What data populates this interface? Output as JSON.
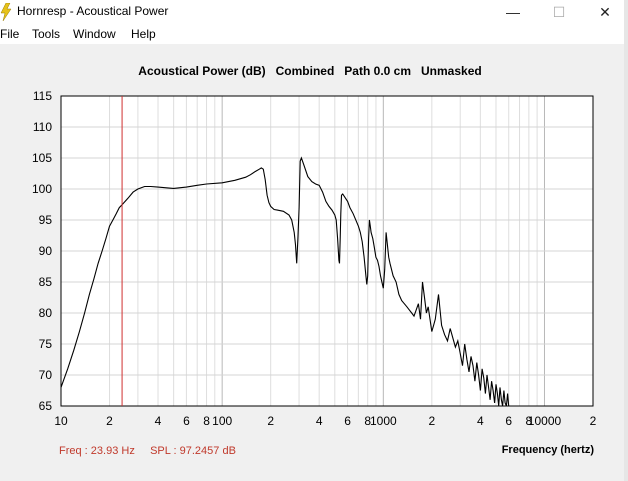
{
  "window": {
    "title": "Hornresp - Acoustical Power",
    "minimize_glyph": "—",
    "maximize_glyph": "☐",
    "close_glyph": "✕",
    "icon": "lightning-icon"
  },
  "menu": [
    {
      "label": "File"
    },
    {
      "label": "Tools"
    },
    {
      "label": "Window"
    },
    {
      "label": "Help"
    }
  ],
  "header": {
    "title": "Acoustical Power (dB)   Combined   Path 0.0 cm   Unmasked"
  },
  "status": {
    "readout": "Freq : 23.93 Hz     SPL : 97.2457 dB",
    "x_axis_label": "Frequency (hertz)"
  },
  "colors": {
    "curve": "#000000",
    "cursor": "#d03030",
    "status_text": "#c0392b",
    "grid": "#c8c8c8"
  },
  "chart_data": {
    "type": "line",
    "title": "Acoustical Power (dB)   Combined   Path 0.0 cm   Unmasked",
    "xlabel": "Frequency (hertz)",
    "ylabel": "",
    "xscale": "log",
    "xlim": [
      10,
      20000
    ],
    "ylim": [
      65,
      115
    ],
    "grid": true,
    "y_ticks": [
      "115",
      "110",
      "105",
      "100",
      "95",
      "90",
      "85",
      "80",
      "75",
      "70",
      "65"
    ],
    "x_ticks": [
      {
        "value": 10,
        "label": "10"
      },
      {
        "value": 20,
        "label": "2"
      },
      {
        "value": 40,
        "label": "4"
      },
      {
        "value": 60,
        "label": "6"
      },
      {
        "value": 80,
        "label": "8"
      },
      {
        "value": 100,
        "label": "100"
      },
      {
        "value": 200,
        "label": "2"
      },
      {
        "value": 400,
        "label": "4"
      },
      {
        "value": 600,
        "label": "6"
      },
      {
        "value": 800,
        "label": "8"
      },
      {
        "value": 1000,
        "label": "1000"
      },
      {
        "value": 2000,
        "label": "2"
      },
      {
        "value": 4000,
        "label": "4"
      },
      {
        "value": 6000,
        "label": "6"
      },
      {
        "value": 8000,
        "label": "8"
      },
      {
        "value": 10000,
        "label": "10000"
      },
      {
        "value": 20000,
        "label": "2"
      }
    ],
    "cursor": {
      "freq": 23.93,
      "spl": 97.2457
    },
    "series": [
      {
        "x": [
          10,
          11,
          12,
          13,
          14,
          15,
          16,
          17,
          18,
          19,
          20,
          21,
          22,
          23,
          24,
          25,
          26,
          28,
          30,
          33,
          36,
          40,
          45,
          50,
          60,
          70,
          80,
          100,
          120,
          140,
          150,
          160,
          170,
          175,
          180,
          185,
          190,
          195,
          200,
          210,
          220,
          240,
          260,
          270,
          280,
          285,
          290,
          295,
          300,
          305,
          310,
          320,
          340,
          360,
          380,
          400,
          420,
          440,
          460,
          480,
          500,
          510,
          520,
          530,
          535,
          540,
          545,
          550,
          560,
          600,
          620,
          650,
          700,
          720,
          740,
          760,
          780,
          790,
          800,
          810,
          820,
          830,
          840,
          860,
          880,
          900,
          920,
          940,
          960,
          980,
          1000,
          1020,
          1040,
          1060,
          1080,
          1100,
          1150,
          1200,
          1250,
          1300,
          1350,
          1400,
          1450,
          1500,
          1550,
          1600,
          1650,
          1700,
          1750,
          1800,
          1850,
          1900,
          2000,
          2050,
          2100,
          2200,
          2300,
          2400,
          2500,
          2600,
          2700,
          2800,
          2900,
          3000,
          3100,
          3200,
          3300,
          3400,
          3500,
          3600,
          3700,
          3800,
          3900,
          4000,
          4100,
          4200,
          4300,
          4400,
          4500,
          4600,
          4700,
          4800,
          4900,
          5000,
          5100,
          5200,
          5300,
          5400,
          5500,
          5600,
          5700,
          5800,
          5900,
          6000,
          6100
        ],
        "values": [
          68.0,
          71.0,
          74.0,
          77.0,
          80.0,
          83.0,
          85.5,
          88.0,
          90.0,
          92.0,
          94.0,
          95.0,
          96.0,
          97.0,
          97.5,
          98.0,
          98.5,
          99.5,
          100.0,
          100.4,
          100.4,
          100.3,
          100.2,
          100.1,
          100.3,
          100.6,
          100.8,
          101.0,
          101.4,
          101.9,
          102.3,
          102.8,
          103.2,
          103.4,
          103.2,
          101.5,
          99.0,
          97.8,
          97.2,
          96.7,
          96.6,
          96.4,
          95.8,
          95.0,
          93.0,
          91.0,
          88.0,
          92.0,
          97.0,
          104.5,
          105.0,
          104.0,
          102.0,
          101.2,
          100.8,
          100.6,
          99.5,
          98.0,
          97.2,
          96.6,
          95.8,
          95.0,
          92.0,
          88.5,
          88.0,
          92.0,
          96.0,
          99.0,
          99.2,
          98.0,
          97.0,
          96.0,
          94.0,
          93.0,
          91.5,
          89.0,
          86.0,
          84.6,
          86.0,
          92.0,
          95.0,
          94.0,
          93.0,
          92.0,
          90.5,
          89.0,
          88.5,
          87.5,
          86.0,
          85.0,
          84.0,
          87.0,
          93.0,
          91.0,
          89.0,
          88.0,
          86.0,
          85.0,
          83.0,
          82.0,
          81.5,
          81.0,
          80.5,
          80.0,
          79.5,
          80.5,
          81.5,
          79.0,
          85.0,
          82.5,
          80.0,
          81.0,
          77.0,
          78.0,
          79.0,
          83.0,
          78.0,
          76.5,
          75.5,
          77.5,
          76.0,
          74.5,
          75.5,
          73.5,
          71.5,
          75.0,
          72.5,
          70.5,
          73.0,
          71.5,
          69.0,
          72.0,
          70.0,
          67.5,
          71.0,
          69.5,
          67.0,
          70.0,
          68.0,
          66.0,
          69.0,
          67.5,
          65.5,
          68.5,
          67.0,
          65.0,
          68.0,
          66.0,
          65.0,
          67.5,
          65.5,
          65.0,
          67.0,
          65.0,
          65.0
        ]
      }
    ]
  }
}
